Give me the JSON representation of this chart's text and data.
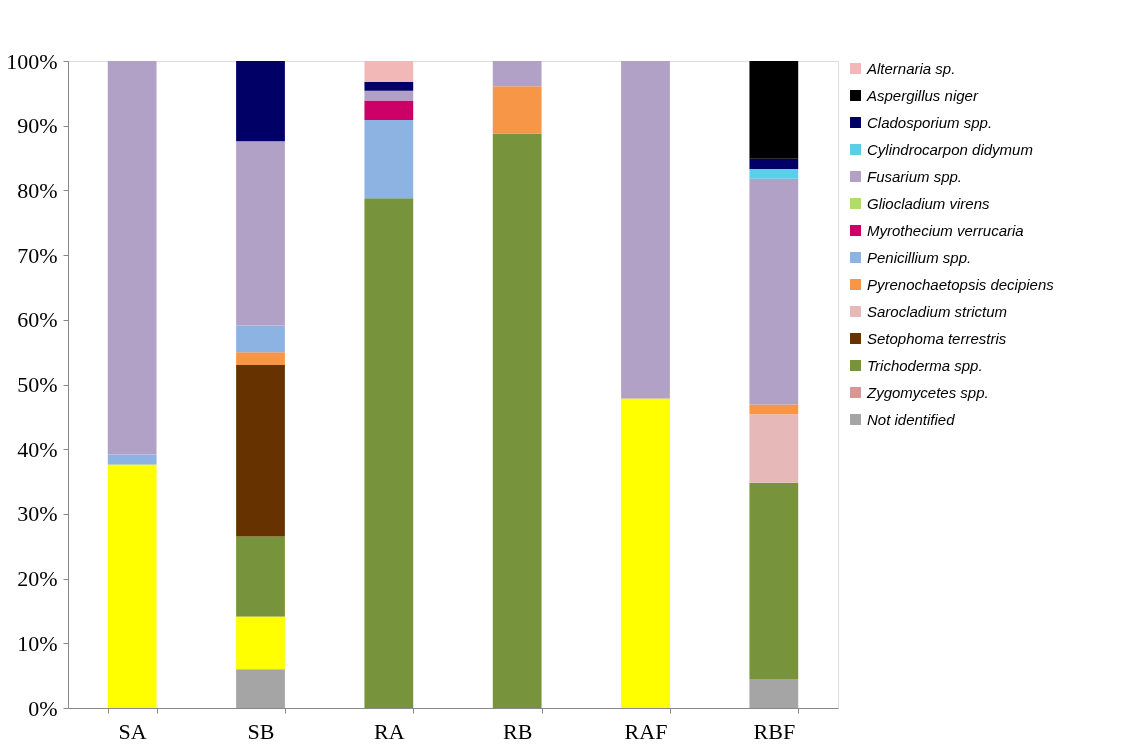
{
  "chart_data": {
    "type": "bar",
    "stacked": true,
    "legend": "top right",
    "grid": false,
    "categories": [
      "SA",
      "SB",
      "RA",
      "RB",
      "RAF",
      "RBF"
    ],
    "ylim": [
      0,
      100
    ],
    "yticks": [
      {
        "value": 0,
        "label": "0%"
      },
      {
        "value": 10,
        "label": "10%"
      },
      {
        "value": 20,
        "label": "20%"
      },
      {
        "value": 30,
        "label": "30%"
      },
      {
        "value": 40,
        "label": "40%"
      },
      {
        "value": 50,
        "label": "50%"
      },
      {
        "value": 60,
        "label": "60%"
      },
      {
        "value": 70,
        "label": "70%"
      },
      {
        "value": 80,
        "label": "80%"
      },
      {
        "value": 90,
        "label": "90%"
      },
      {
        "value": 100,
        "label": "100%"
      }
    ],
    "series": [
      {
        "name": "Not identified",
        "color": "#a5a5a5",
        "values": [
          null,
          6.0,
          null,
          null,
          null,
          4.5
        ]
      },
      {
        "color": "#ffff00",
        "values": [
          37.6,
          8.1,
          null,
          null,
          47.8,
          null
        ]
      },
      {
        "name": "Zygomycetes spp.",
        "color": "#d99694",
        "values": [
          null,
          null,
          null,
          null,
          null,
          null
        ]
      },
      {
        "name": "Trichoderma spp.",
        "color": "#77933c",
        "values": [
          null,
          12.4,
          78.8,
          88.8,
          null,
          30.3
        ]
      },
      {
        "name": "Setophoma terrestris",
        "color": "#663300",
        "values": [
          null,
          26.5,
          null,
          null,
          null,
          null
        ]
      },
      {
        "name": "Sarocladium strictum",
        "color": "#e6b9b8",
        "values": [
          null,
          null,
          null,
          null,
          null,
          10.6
        ]
      },
      {
        "name": "Pyrenochaetopsis decipiens",
        "color": "#f79646",
        "values": [
          null,
          2.0,
          null,
          7.3,
          null,
          1.5
        ]
      },
      {
        "name": "Penicillium spp.",
        "color": "#8db3e2",
        "values": [
          1.6,
          4.1,
          12.1,
          null,
          null,
          null
        ]
      },
      {
        "name": "Myrothecium verrucaria",
        "color": "#cc0066",
        "values": [
          null,
          null,
          3.0,
          null,
          null,
          null
        ]
      },
      {
        "name": "Gliocladium virens",
        "color": "#b0dc6a",
        "values": [
          null,
          null,
          null,
          null,
          null,
          null
        ]
      },
      {
        "name": "Fusarium spp.",
        "color": "#b2a1c7",
        "values": [
          60.8,
          28.5,
          1.5,
          3.9,
          52.2,
          34.9
        ]
      },
      {
        "name": "Cylindrocarpon didymum",
        "color": "#5bcfea",
        "values": [
          null,
          null,
          null,
          null,
          null,
          1.5
        ]
      },
      {
        "name": "Cladosporium spp.",
        "color": "#000066",
        "values": [
          null,
          12.4,
          1.4,
          null,
          null,
          1.6
        ]
      },
      {
        "name": "Aspergillus niger",
        "color": "#000000",
        "values": [
          null,
          null,
          null,
          null,
          null,
          15.1
        ]
      },
      {
        "name": "Alternaria sp.",
        "color": "#f2b8b8",
        "values": [
          null,
          null,
          3.2,
          null,
          null,
          null
        ]
      }
    ]
  }
}
